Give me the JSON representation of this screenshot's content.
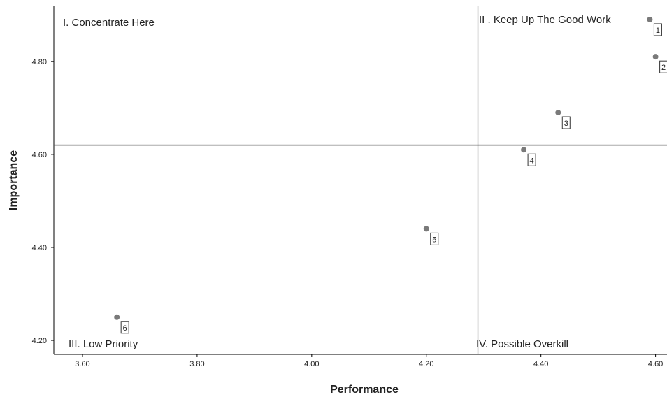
{
  "chart_data": {
    "type": "scatter",
    "xlabel": "Performance",
    "ylabel": "Importance",
    "xlim": [
      3.55,
      4.62
    ],
    "ylim": [
      4.17,
      4.92
    ],
    "xticks": [
      "3.60",
      "3.80",
      "4.00",
      "4.20",
      "4.40",
      "4.60"
    ],
    "yticks": [
      "4.20",
      "4.40",
      "4.60",
      "4.80"
    ],
    "reference_lines": {
      "x": 4.29,
      "y": 4.62
    },
    "quadrant_labels": {
      "top_left": "I. Concentrate Here",
      "top_right": "II . Keep Up The Good Work",
      "bottom_left": "III. Low Priority",
      "bottom_right": "IV. Possible Overkill"
    },
    "points": [
      {
        "label": "1",
        "x": 4.59,
        "y": 4.89
      },
      {
        "label": "2",
        "x": 4.6,
        "y": 4.81
      },
      {
        "label": "3",
        "x": 4.43,
        "y": 4.69
      },
      {
        "label": "4",
        "x": 4.37,
        "y": 4.61
      },
      {
        "label": "5",
        "x": 4.2,
        "y": 4.44
      },
      {
        "label": "6",
        "x": 3.66,
        "y": 4.25
      }
    ],
    "grid": false,
    "colors": {
      "marker": "#7a7a7a",
      "line": "#555555",
      "axis": "#000000"
    }
  }
}
